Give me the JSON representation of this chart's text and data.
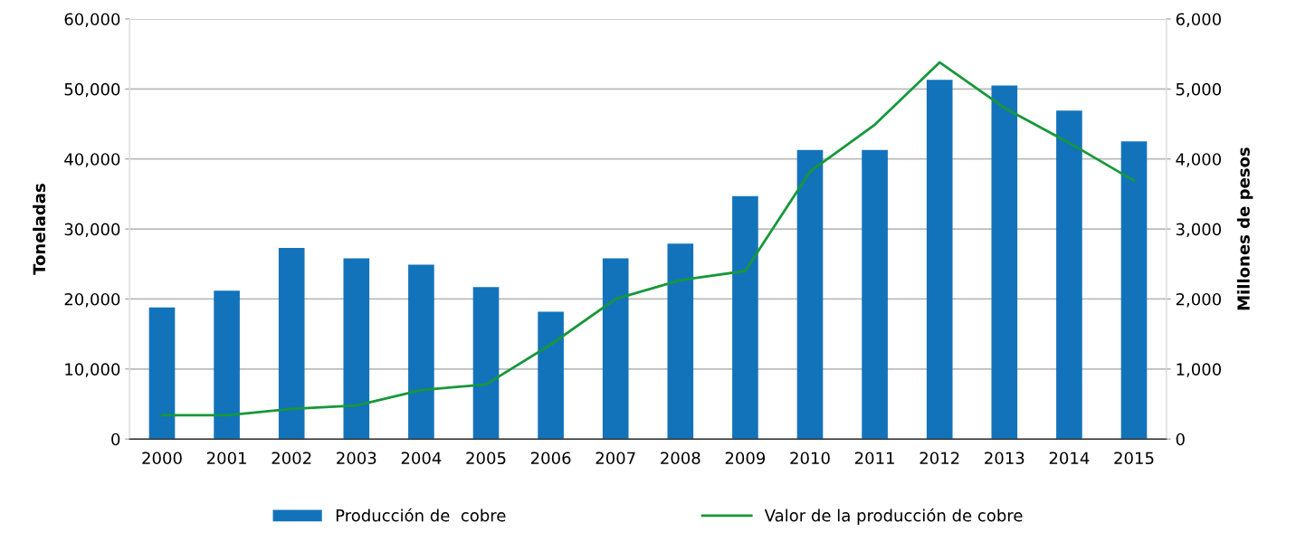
{
  "chart_data": {
    "type": "bar",
    "ylabel": "Toneladas",
    "y2label": "Millones de pesos",
    "categories": [
      "2000",
      "2001",
      "2002",
      "2003",
      "2004",
      "2005",
      "2006",
      "2007",
      "2008",
      "2009",
      "2010",
      "2011",
      "2012",
      "2013",
      "2014",
      "2015"
    ],
    "series": [
      {
        "name": "Producción de  cobre",
        "color": "#1373ba",
        "values": [
          18800,
          21200,
          27300,
          25800,
          24900,
          21700,
          18200,
          25800,
          27900,
          34700,
          41300,
          41300,
          51300,
          50500,
          46900,
          42500
        ]
      },
      {
        "name": "Valor de la producción de cobre",
        "type": "line",
        "axis": "y2",
        "color": "#16983a",
        "values": [
          340,
          340,
          430,
          480,
          700,
          780,
          1350,
          2000,
          2270,
          2400,
          3820,
          4490,
          5380,
          4730,
          4230,
          3690
        ]
      }
    ],
    "ylim": [
      0,
      60000
    ],
    "yticks": [
      {
        "value": 0,
        "label": "0"
      },
      {
        "value": 10000,
        "label": "10,000"
      },
      {
        "value": 20000,
        "label": "20,000"
      },
      {
        "value": 30000,
        "label": "30,000"
      },
      {
        "value": 40000,
        "label": "40,000"
      },
      {
        "value": 50000,
        "label": "50,000"
      },
      {
        "value": 60000,
        "label": "60,000"
      }
    ],
    "y2lim": [
      0,
      6000
    ],
    "y2ticks": [
      {
        "value": 0,
        "label": "0"
      },
      {
        "value": 1000,
        "label": "1,000"
      },
      {
        "value": 2000,
        "label": "2,000"
      },
      {
        "value": 3000,
        "label": "3,000"
      },
      {
        "value": 4000,
        "label": "4,000"
      },
      {
        "value": 5000,
        "label": "5,000"
      },
      {
        "value": 6000,
        "label": "6,000"
      }
    ],
    "grid": "y",
    "legend": "bottom",
    "marker": "none",
    "line_style": "solid"
  }
}
